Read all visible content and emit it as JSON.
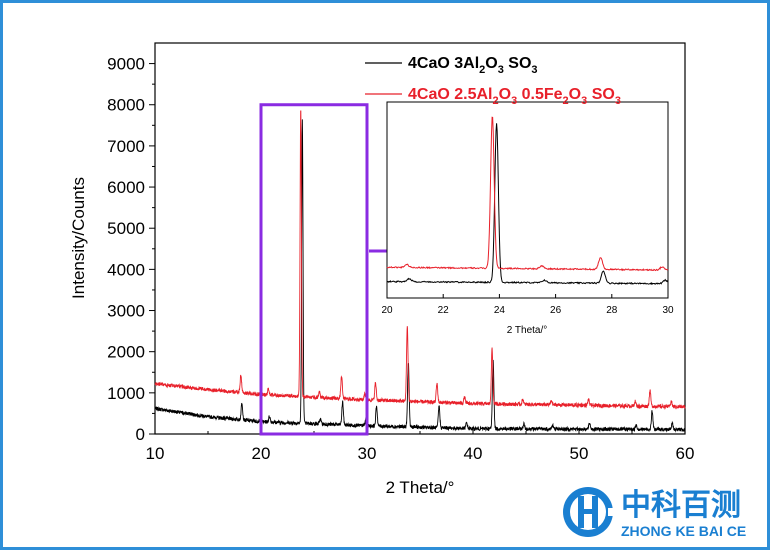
{
  "chart_data": {
    "type": "line",
    "x_axis_label": "2 Theta/°",
    "y_axis_label": "Intensity/Counts",
    "xlim": [
      10,
      60
    ],
    "ylim": [
      0,
      9500
    ],
    "x_ticks": [
      10,
      20,
      30,
      40,
      50,
      60
    ],
    "y_ticks": [
      0,
      1000,
      2000,
      3000,
      4000,
      5000,
      6000,
      7000,
      8000,
      9000
    ],
    "legend_position": "top-right",
    "series": [
      {
        "name_parts": [
          "4CaO  3Al",
          "2",
          "O",
          "3",
          " SO",
          "3"
        ],
        "color": "#000000",
        "baseline": [
          [
            10,
            620
          ],
          [
            15,
            420
          ],
          [
            20,
            300
          ],
          [
            30,
            200
          ],
          [
            40,
            130
          ],
          [
            50,
            120
          ],
          [
            60,
            110
          ]
        ],
        "peaks": [
          [
            18.2,
            420
          ],
          [
            20.8,
            140
          ],
          [
            23.9,
            7350
          ],
          [
            25.6,
            120
          ],
          [
            27.7,
            560
          ],
          [
            29.9,
            160
          ],
          [
            30.9,
            480
          ],
          [
            33.9,
            1580
          ],
          [
            36.8,
            530
          ],
          [
            39.4,
            140
          ],
          [
            41.9,
            1680
          ],
          [
            44.8,
            120
          ],
          [
            47.5,
            90
          ],
          [
            51.0,
            140
          ],
          [
            55.4,
            110
          ],
          [
            56.9,
            440
          ],
          [
            58.8,
            150
          ]
        ]
      },
      {
        "name_parts": [
          "4CaO  2.5Al",
          "2",
          "O",
          "3",
          " 0.5Fe",
          "2",
          "O",
          "3",
          " SO",
          "3"
        ],
        "color": "#e8202a",
        "baseline": [
          [
            10,
            1220
          ],
          [
            15,
            1080
          ],
          [
            20,
            960
          ],
          [
            30,
            830
          ],
          [
            40,
            740
          ],
          [
            50,
            700
          ],
          [
            60,
            660
          ]
        ],
        "peaks": [
          [
            18.1,
            420
          ],
          [
            20.7,
            140
          ],
          [
            23.75,
            7050
          ],
          [
            25.5,
            130
          ],
          [
            27.6,
            540
          ],
          [
            29.8,
            150
          ],
          [
            30.8,
            420
          ],
          [
            33.8,
            1810
          ],
          [
            36.6,
            460
          ],
          [
            39.2,
            140
          ],
          [
            41.8,
            1340
          ],
          [
            44.7,
            120
          ],
          [
            47.4,
            100
          ],
          [
            50.9,
            140
          ],
          [
            55.3,
            110
          ],
          [
            56.7,
            380
          ],
          [
            58.7,
            130
          ]
        ]
      }
    ],
    "inset": {
      "xlim": [
        20,
        30
      ],
      "x_ticks": [
        20,
        22,
        24,
        26,
        28,
        30
      ],
      "x_axis_label": "2 Theta/°"
    },
    "highlight_range": [
      20,
      30
    ]
  },
  "branding": {
    "name_cn": "中科百测",
    "name_en": "ZHONG KE BAI CE"
  }
}
